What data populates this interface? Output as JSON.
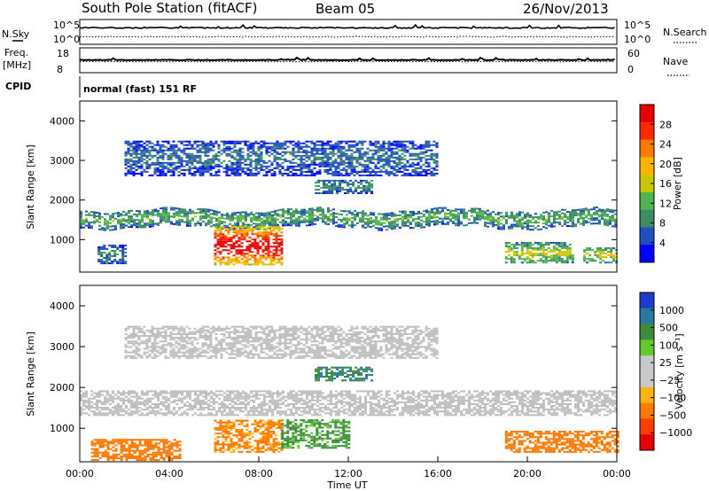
{
  "header": {
    "station": "South Pole Station (fitACF)",
    "beam": "Beam 05",
    "date": "26/Nov/2013"
  },
  "side_labels": {
    "nsky": "N.Sky",
    "nsearch": "N.Search",
    "freq_line1": "Freq.",
    "freq_line2": "[MHz]",
    "nave": "Nave",
    "cpid": "CPID",
    "cpid_value": "normal (fast) 151 RF",
    "noise_left_ticks": [
      "10^5",
      "10^0"
    ],
    "noise_right_ticks": [
      "10^5",
      "10^0"
    ],
    "freq_left_ticks": [
      "18",
      "8"
    ],
    "freq_right_ticks": [
      "60",
      "0"
    ]
  },
  "colors": {
    "power_scale": [
      "#0000ff",
      "#2050c0",
      "#3c8c64",
      "#50b450",
      "#c8c800",
      "#ffb400",
      "#ff7800",
      "#ff2800",
      "#e60000"
    ],
    "velocity_scale": [
      "#1e3cc8",
      "#2878a0",
      "#3c8c3c",
      "#64c832",
      "#c8c8c8",
      "#c8c8c8",
      "#ffb414",
      "#ff7800",
      "#ff3c00",
      "#e60000"
    ],
    "ground_scatter": "#c0c0c0"
  },
  "chart_data": [
    {
      "type": "heatmap",
      "panel": "power",
      "ylabel": "Slant Range [km]",
      "xlabel": "",
      "ylim": [
        180,
        4500
      ],
      "yticks": [
        "1000",
        "2000",
        "3000",
        "4000"
      ],
      "colorbar_label": "Power [dB]",
      "colorbar_ticks": [
        "4",
        "8",
        "12",
        "16",
        "20",
        "24",
        "28"
      ],
      "zlim": [
        0,
        30
      ],
      "features": [
        {
          "range": [
            1300,
            1750
          ],
          "time_h": [
            0,
            24
          ],
          "power_db": 10
        },
        {
          "range": [
            2600,
            3500
          ],
          "time_h": [
            2,
            16
          ],
          "power_db": 6
        },
        {
          "range": [
            2150,
            2500
          ],
          "time_h": [
            10.5,
            13
          ],
          "power_db": 8
        },
        {
          "range": [
            350,
            1300
          ],
          "time_h": [
            6,
            9
          ],
          "power_db": 28
        },
        {
          "range": [
            380,
            850
          ],
          "time_h": [
            0.8,
            2
          ],
          "power_db": 8
        },
        {
          "range": [
            400,
            900
          ],
          "time_h": [
            19,
            22
          ],
          "power_db": 14
        },
        {
          "range": [
            400,
            800
          ],
          "time_h": [
            22.5,
            24
          ],
          "power_db": 14
        }
      ]
    },
    {
      "type": "heatmap",
      "panel": "velocity",
      "ylabel": "Slant Range [km]",
      "xlabel": "Time UT",
      "ylim": [
        180,
        4500
      ],
      "yticks": [
        "1000",
        "2000",
        "3000",
        "4000"
      ],
      "xticks": [
        "00:00",
        "04:00",
        "08:00",
        "12:00",
        "16:00",
        "20:00",
        "00:00"
      ],
      "xlim_hours": [
        0,
        24
      ],
      "colorbar_label": "Velocity [m s⁻¹]",
      "colorbar_ticks": [
        "1000",
        "500",
        "100",
        "25",
        "−25",
        "−100",
        "−500",
        "−1000"
      ],
      "features": [
        {
          "range": [
            1300,
            1900
          ],
          "time_h": [
            0,
            24
          ],
          "velocity_ms": 0,
          "ground_scatter": true
        },
        {
          "range": [
            2700,
            3500
          ],
          "time_h": [
            2,
            16
          ],
          "velocity_ms": 0,
          "ground_scatter": true
        },
        {
          "range": [
            2150,
            2500
          ],
          "time_h": [
            10.5,
            13
          ],
          "velocity_ms": 300
        },
        {
          "range": [
            400,
            1200
          ],
          "time_h": [
            6,
            9
          ],
          "velocity_ms": -150
        },
        {
          "range": [
            500,
            1200
          ],
          "time_h": [
            9,
            12
          ],
          "velocity_ms": 150
        },
        {
          "range": [
            200,
            700
          ],
          "time_h": [
            0.5,
            4.5
          ],
          "velocity_ms": -200
        },
        {
          "range": [
            400,
            900
          ],
          "time_h": [
            19,
            24
          ],
          "velocity_ms": -200
        }
      ]
    }
  ]
}
